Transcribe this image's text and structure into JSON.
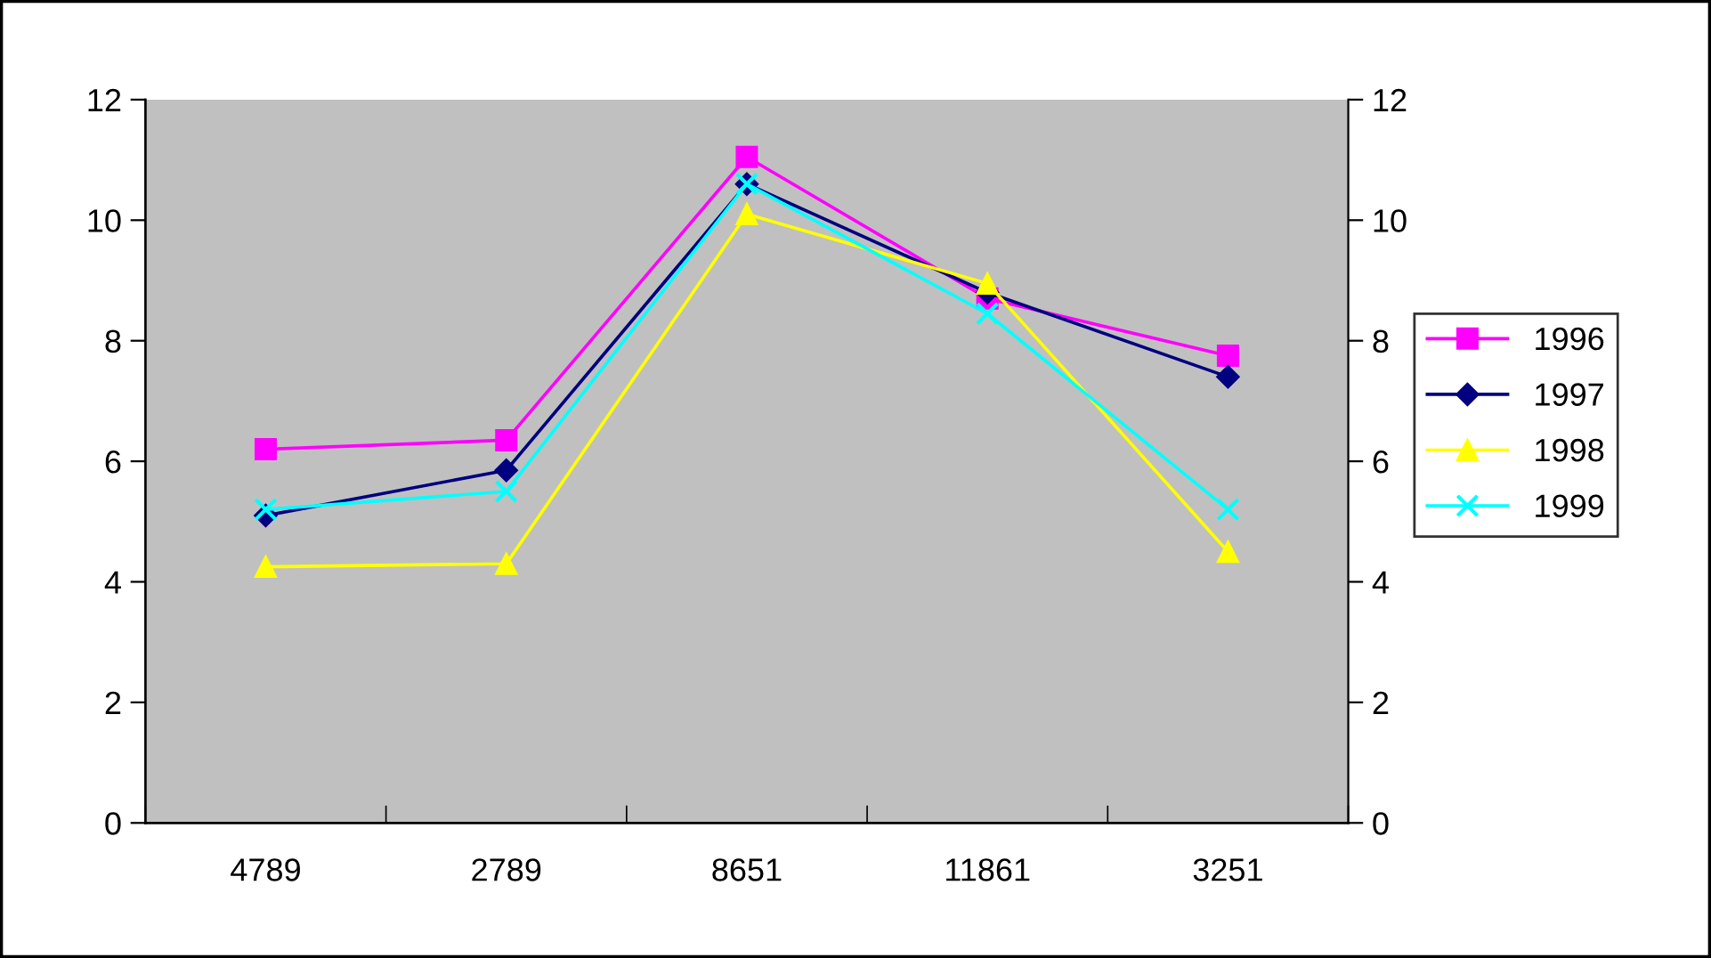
{
  "chart_data": {
    "type": "line",
    "categories": [
      "4789",
      "2789",
      "8651",
      "11861",
      "3251"
    ],
    "series": [
      {
        "name": "1996",
        "color": "#ff00ff",
        "marker": "square",
        "values": [
          6.2,
          6.35,
          11.05,
          8.7,
          7.75
        ]
      },
      {
        "name": "1997",
        "color": "#000080",
        "marker": "diamond",
        "values": [
          5.1,
          5.85,
          10.6,
          8.8,
          7.4
        ]
      },
      {
        "name": "1998",
        "color": "#ffff00",
        "marker": "triangle",
        "values": [
          4.25,
          4.3,
          10.1,
          8.95,
          4.5
        ]
      },
      {
        "name": "1999",
        "color": "#00ffff",
        "marker": "cross",
        "values": [
          5.2,
          5.5,
          10.6,
          8.45,
          5.2
        ]
      }
    ],
    "ylim": [
      0,
      12
    ],
    "yticks": [
      0,
      2,
      4,
      6,
      8,
      10,
      12
    ],
    "y2lim": [
      0,
      12
    ],
    "y2ticks": [
      0,
      2,
      4,
      6,
      8,
      10,
      12
    ],
    "grid": false,
    "legend": "right"
  }
}
